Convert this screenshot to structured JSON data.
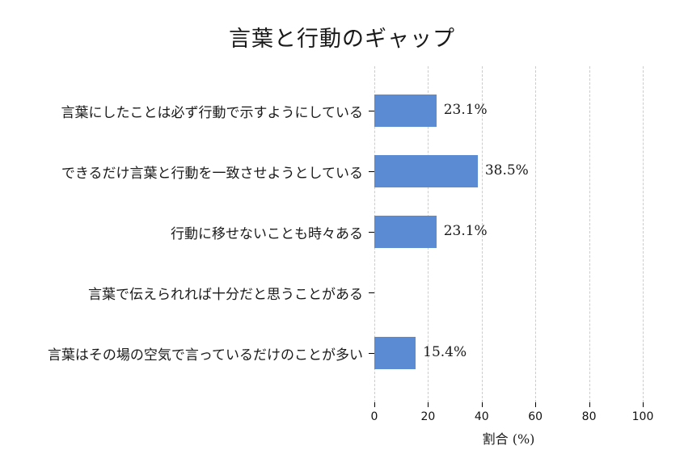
{
  "title": "言葉と行動のギャップ",
  "chart_data": {
    "type": "bar",
    "orientation": "horizontal",
    "title": "言葉と行動のギャップ",
    "categories": [
      "言葉にしたことは必ず行動で示すようにしている",
      "できるだけ言葉と行動を一致させようとしている",
      "行動に移せないことも時々ある",
      "言葉で伝えられれば十分だと思うことがある",
      "言葉はその場の空気で言っているだけのことが多い"
    ],
    "values": [
      23.1,
      38.5,
      23.1,
      0,
      15.4
    ],
    "value_labels": [
      "23.1%",
      "38.5%",
      "23.1%",
      "",
      "15.4%"
    ],
    "xlabel": "割合 (%)",
    "xlim": [
      0,
      100
    ],
    "xticks": [
      0,
      20,
      40,
      60,
      80,
      100
    ],
    "xtick_labels": [
      "0",
      "20",
      "40",
      "60",
      "80",
      "100"
    ],
    "grid": "vertical-dashed",
    "legend": "none",
    "bar_color": "#5B8CD3",
    "grid_color": "#cccccc",
    "tick_color": "#000000",
    "text_color": "#1a1a1a"
  }
}
